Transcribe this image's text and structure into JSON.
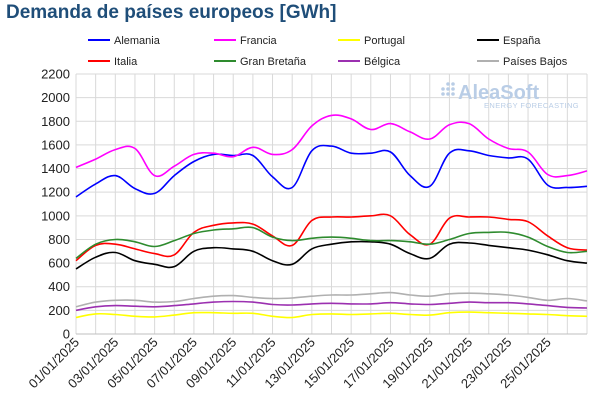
{
  "chart_data": {
    "type": "line",
    "title": "Demanda de países europeos [GWh]",
    "xlabel": "",
    "ylabel": "",
    "ylim": [
      0,
      2200
    ],
    "yticks": [
      0,
      200,
      400,
      600,
      800,
      1000,
      1200,
      1400,
      1600,
      1800,
      2000,
      2200
    ],
    "grid": true,
    "legend": "top",
    "x": [
      "01/01/2025",
      "02/01/2025",
      "03/01/2025",
      "04/01/2025",
      "05/01/2025",
      "06/01/2025",
      "07/01/2025",
      "08/01/2025",
      "09/01/2025",
      "10/01/2025",
      "11/01/2025",
      "12/01/2025",
      "13/01/2025",
      "14/01/2025",
      "15/01/2025",
      "16/01/2025",
      "17/01/2025",
      "18/01/2025",
      "19/01/2025",
      "20/01/2025",
      "21/01/2025",
      "22/01/2025",
      "23/01/2025",
      "24/01/2025",
      "25/01/2025",
      "26/01/2025",
      "27/01/2025"
    ],
    "xtick_labels": [
      "01/01/2025",
      "03/01/2025",
      "05/01/2025",
      "07/01/2025",
      "09/01/2025",
      "11/01/2025",
      "13/01/2025",
      "15/01/2025",
      "17/01/2025",
      "19/01/2025",
      "21/01/2025",
      "23/01/2025",
      "25/01/2025"
    ],
    "series": [
      {
        "name": "Alemania",
        "color": "#0000ff",
        "values": [
          1160,
          1270,
          1340,
          1230,
          1190,
          1340,
          1460,
          1520,
          1510,
          1510,
          1330,
          1240,
          1550,
          1590,
          1530,
          1530,
          1540,
          1340,
          1250,
          1530,
          1550,
          1510,
          1490,
          1480,
          1260,
          1240,
          1250
        ]
      },
      {
        "name": "Francia",
        "color": "#ff00ff",
        "values": [
          1410,
          1480,
          1560,
          1570,
          1340,
          1420,
          1520,
          1530,
          1500,
          1580,
          1520,
          1560,
          1760,
          1850,
          1820,
          1730,
          1780,
          1710,
          1650,
          1770,
          1780,
          1650,
          1570,
          1540,
          1350,
          1340,
          1380
        ]
      },
      {
        "name": "Portugal",
        "color": "#ffff00",
        "values": [
          140,
          170,
          165,
          150,
          145,
          160,
          180,
          180,
          175,
          175,
          150,
          140,
          165,
          170,
          165,
          170,
          175,
          165,
          160,
          180,
          185,
          180,
          175,
          170,
          165,
          155,
          150
        ]
      },
      {
        "name": "España",
        "color": "#000000",
        "values": [
          550,
          650,
          690,
          620,
          590,
          570,
          700,
          730,
          720,
          700,
          620,
          590,
          720,
          760,
          780,
          780,
          760,
          680,
          640,
          760,
          770,
          750,
          730,
          710,
          670,
          620,
          600
        ]
      },
      {
        "name": "Italia",
        "color": "#ff0000",
        "values": [
          620,
          750,
          760,
          720,
          680,
          670,
          860,
          920,
          940,
          930,
          830,
          750,
          960,
          990,
          990,
          1000,
          1000,
          840,
          760,
          980,
          990,
          990,
          970,
          950,
          830,
          730,
          710
        ]
      },
      {
        "name": "Gran Bretaña",
        "color": "#2e8b2e",
        "values": [
          640,
          760,
          800,
          780,
          740,
          790,
          850,
          880,
          890,
          900,
          820,
          790,
          810,
          820,
          810,
          790,
          790,
          780,
          760,
          800,
          850,
          860,
          860,
          820,
          740,
          690,
          700
        ]
      },
      {
        "name": "Bélgica",
        "color": "#9b30b0",
        "values": [
          200,
          230,
          240,
          235,
          230,
          240,
          255,
          270,
          275,
          270,
          250,
          245,
          255,
          260,
          255,
          255,
          265,
          255,
          250,
          260,
          270,
          265,
          265,
          255,
          240,
          225,
          220
        ]
      },
      {
        "name": "Países Bajos",
        "color": "#b0b0b0",
        "values": [
          230,
          270,
          285,
          285,
          270,
          275,
          300,
          320,
          325,
          310,
          300,
          305,
          320,
          330,
          330,
          340,
          350,
          330,
          320,
          340,
          345,
          340,
          330,
          310,
          285,
          300,
          280
        ]
      }
    ]
  },
  "watermark": {
    "brand": "AleaSoft",
    "tagline": "ENERGY FORECASTING"
  }
}
